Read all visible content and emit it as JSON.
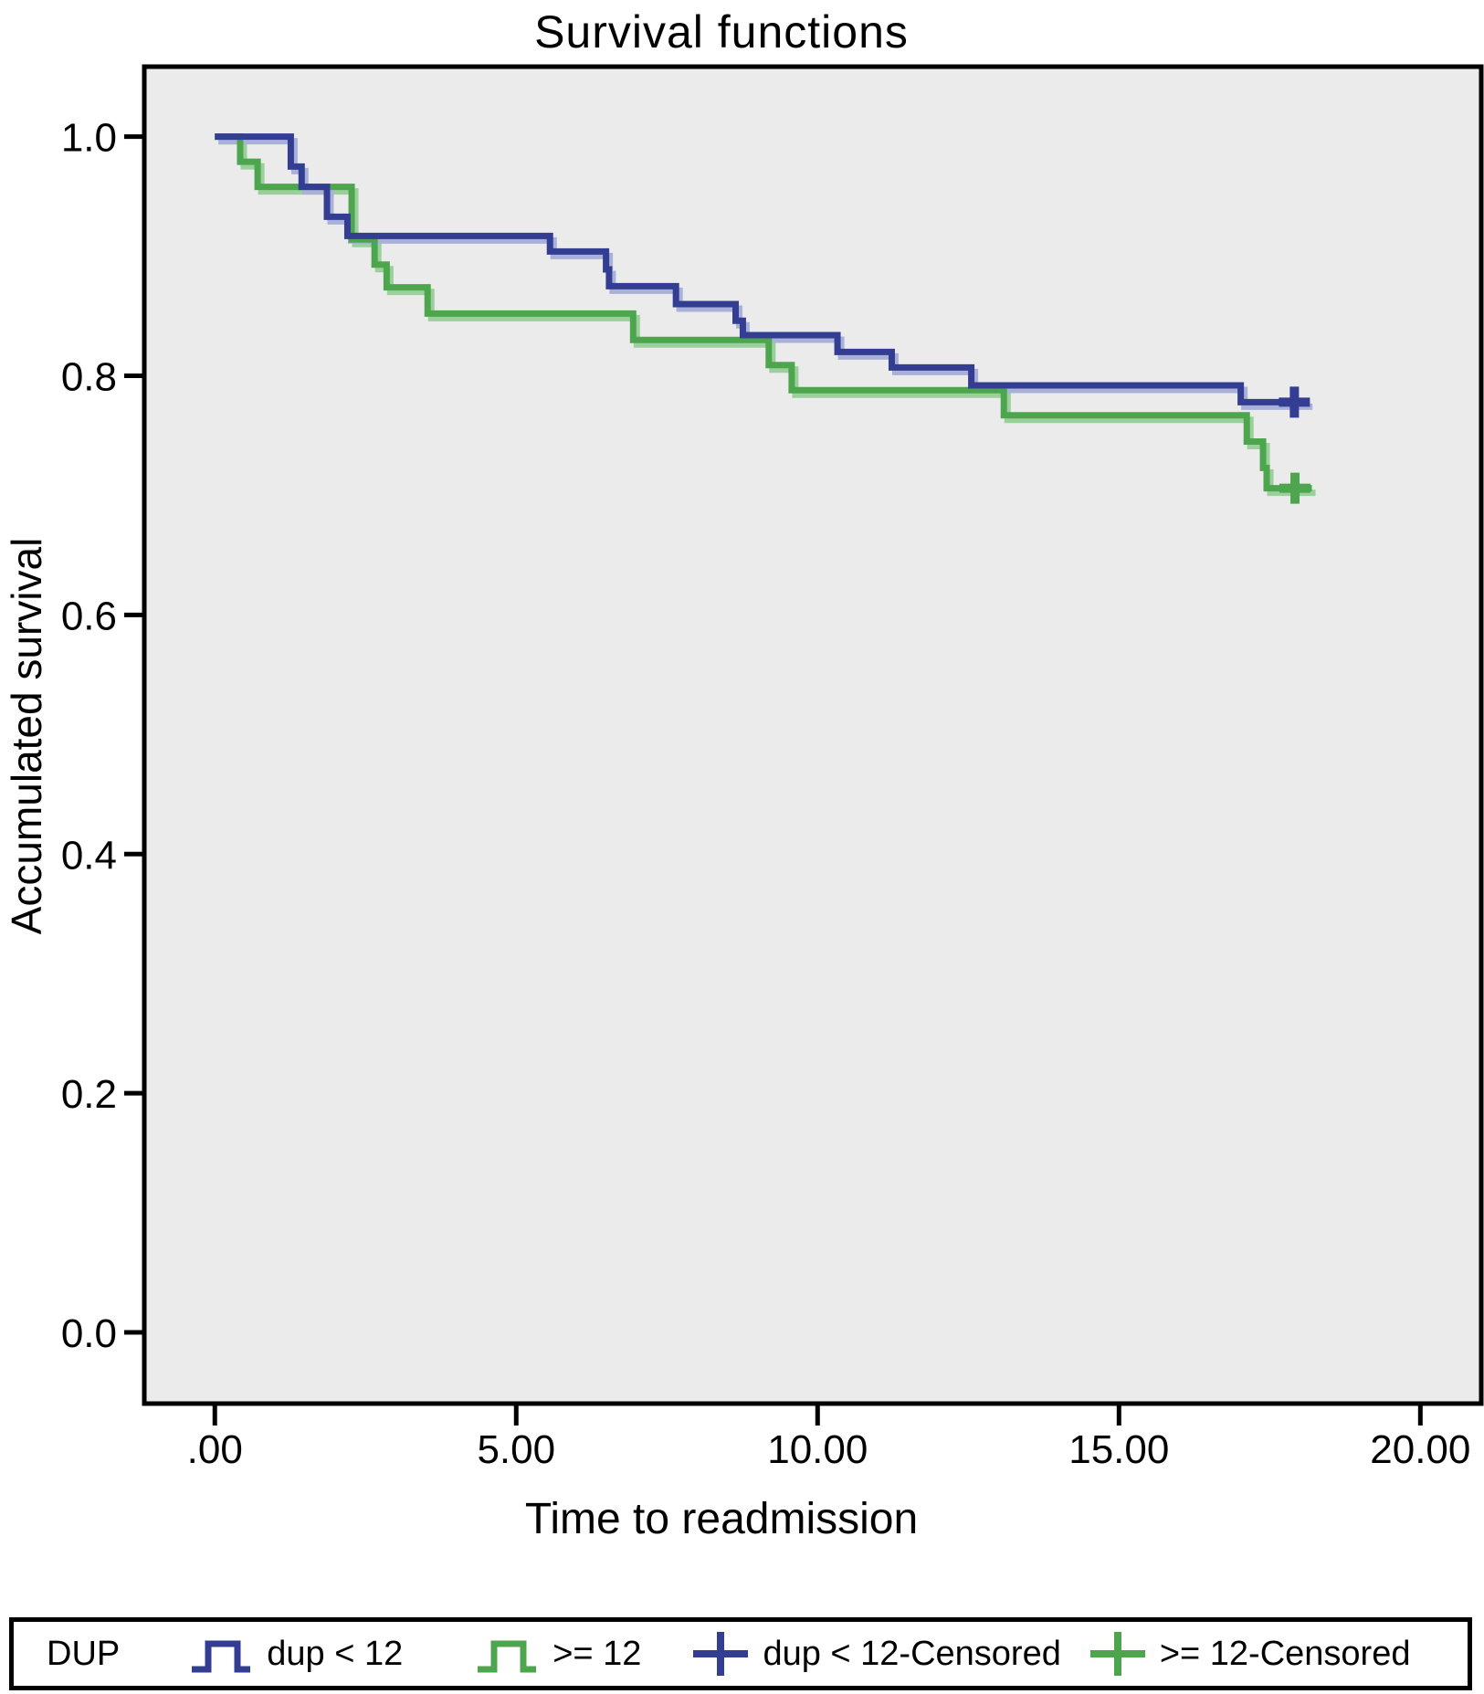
{
  "chart_data": {
    "type": "line",
    "subtype": "kaplan-meier-step",
    "title": "Survival functions",
    "xlabel": "Time to readmission",
    "ylabel": "Accumulated survival",
    "grid": false,
    "plot_bg": "#ebebeb",
    "frame_color": "#000000",
    "xlim": [
      -1.14,
      20.98
    ],
    "ylim": [
      -0.058,
      1.057
    ],
    "x_ticks": {
      "labels": [
        ".00",
        "5.00",
        "10.00",
        "15.00",
        "20.00"
      ],
      "values": [
        0,
        5,
        10,
        15,
        20
      ]
    },
    "y_ticks": {
      "labels": [
        "1.0",
        "0.8",
        "0.6",
        "0.4",
        "0.2",
        "0.0"
      ],
      "values": [
        1.0,
        0.8,
        0.6,
        0.4,
        0.2,
        0.0
      ]
    },
    "series": [
      {
        "name": "dup < 12",
        "color": "#333d91",
        "shadow_color": "#a9b1d8",
        "steps": [
          [
            0,
            1.0
          ],
          [
            1.26,
            0.975
          ],
          [
            1.44,
            0.958
          ],
          [
            1.86,
            0.933
          ],
          [
            2.2,
            0.917
          ],
          [
            5.56,
            0.904
          ],
          [
            6.49,
            0.889
          ],
          [
            6.54,
            0.875
          ],
          [
            7.65,
            0.86
          ],
          [
            8.64,
            0.846
          ],
          [
            8.76,
            0.834
          ],
          [
            10.33,
            0.82
          ],
          [
            11.23,
            0.807
          ],
          [
            12.55,
            0.792
          ],
          [
            17.02,
            0.778
          ]
        ],
        "end_t": 18.15,
        "censored": [
          [
            17.91,
            0.778
          ]
        ]
      },
      {
        "name": ">= 12",
        "color": "#4da64d",
        "shadow_color": "#9bcf9b",
        "steps": [
          [
            0,
            1.0
          ],
          [
            0.42,
            0.979
          ],
          [
            0.71,
            0.958
          ],
          [
            2.27,
            0.914
          ],
          [
            2.65,
            0.893
          ],
          [
            2.85,
            0.874
          ],
          [
            3.53,
            0.852
          ],
          [
            6.94,
            0.83
          ],
          [
            9.19,
            0.809
          ],
          [
            9.57,
            0.788
          ],
          [
            13.09,
            0.767
          ],
          [
            17.12,
            0.745
          ],
          [
            17.39,
            0.723
          ],
          [
            17.45,
            0.706
          ]
        ],
        "end_t": 18.2,
        "censored": [
          [
            17.92,
            0.706
          ]
        ]
      }
    ],
    "legend": {
      "title": "DUP",
      "position": "bottom",
      "entries": [
        {
          "swatch": "step",
          "series": 0,
          "label": "dup < 12"
        },
        {
          "swatch": "step",
          "series": 1,
          "label": ">= 12"
        },
        {
          "swatch": "plus",
          "series": 0,
          "label": "dup < 12-Censored"
        },
        {
          "swatch": "plus",
          "series": 1,
          "label": ">= 12-Censored"
        }
      ]
    }
  }
}
